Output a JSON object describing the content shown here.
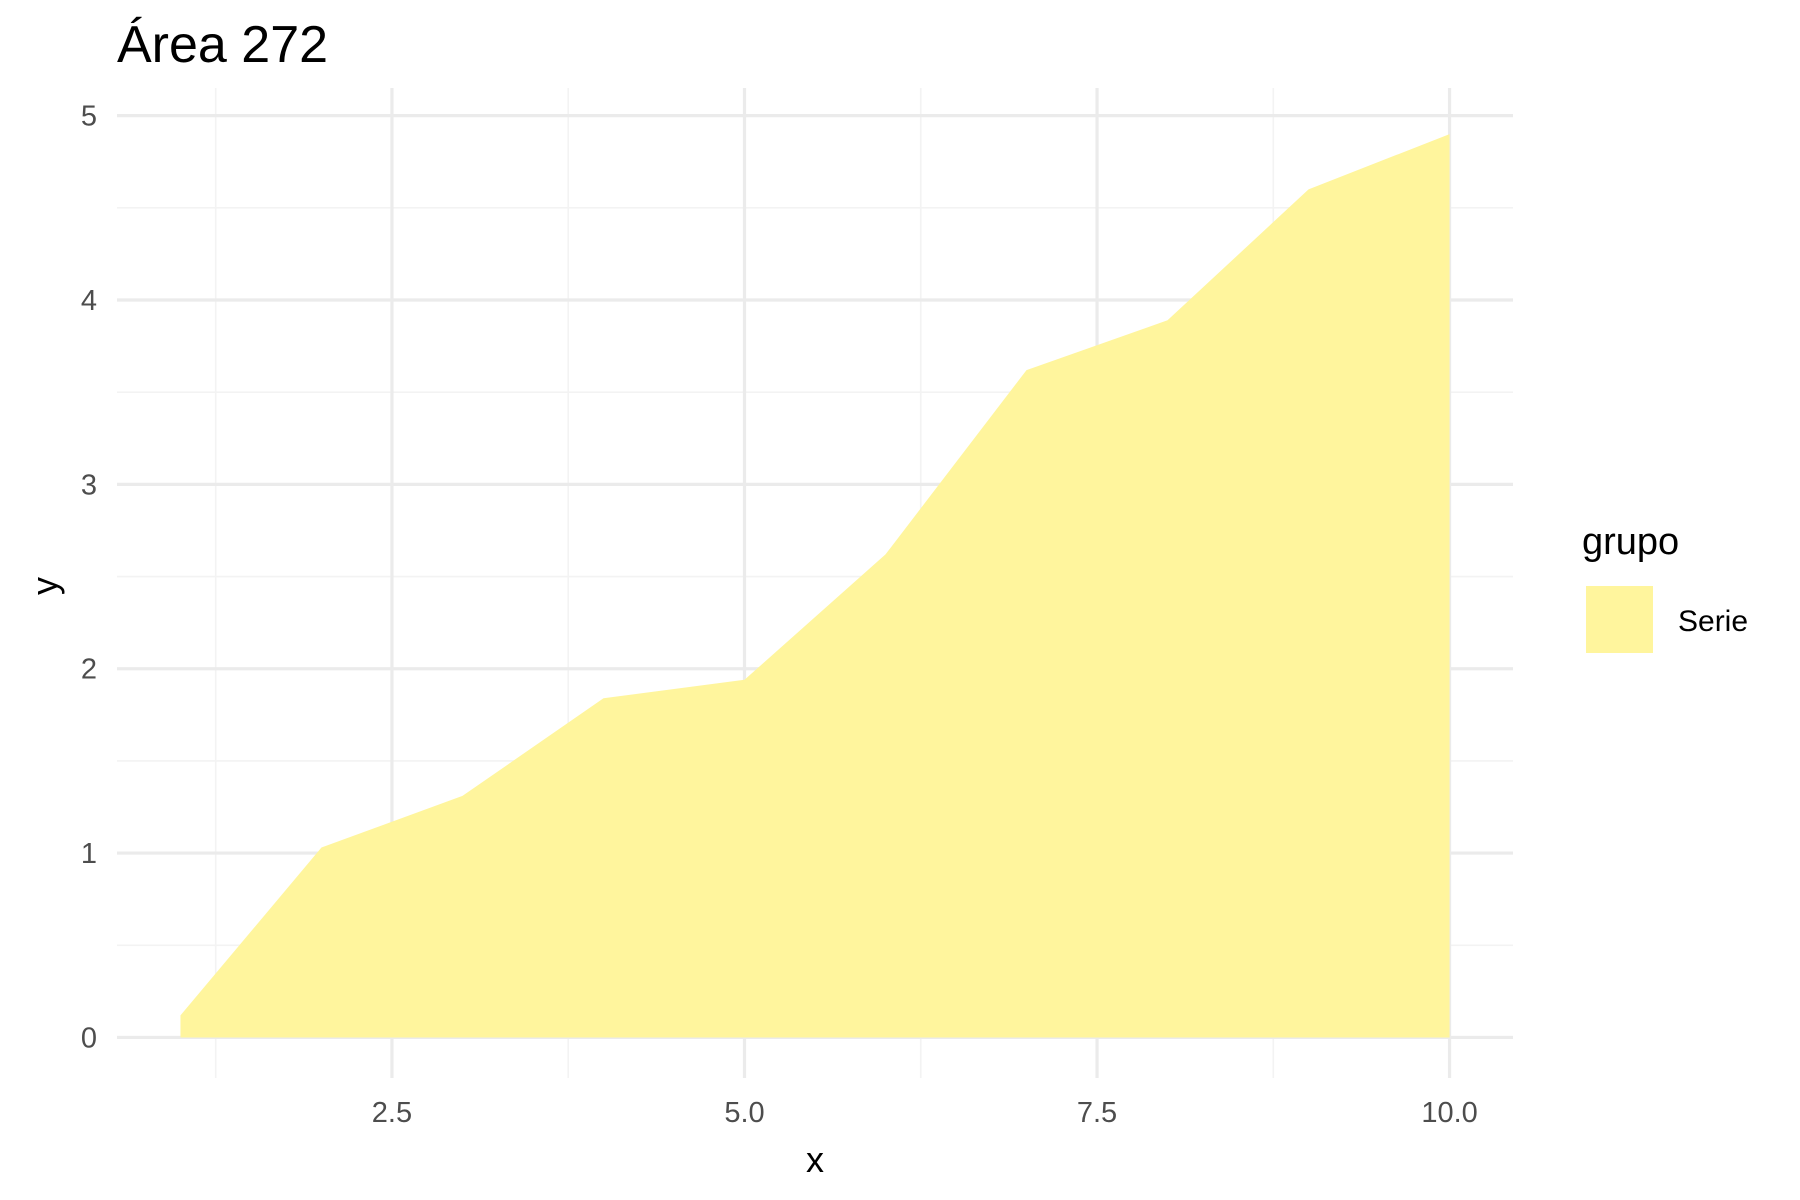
{
  "chart_data": {
    "type": "area",
    "title": "Área 272",
    "xlabel": "x",
    "ylabel": "y",
    "x": [
      1,
      2,
      3,
      4,
      5,
      6,
      7,
      8,
      9,
      10
    ],
    "series": [
      {
        "name": "Serie",
        "values": [
          0.12,
          1.03,
          1.31,
          1.84,
          1.94,
          2.62,
          3.62,
          3.89,
          4.6,
          4.9
        ],
        "color": "#fff59d"
      }
    ],
    "xlim": [
      0.55,
      10.45
    ],
    "ylim": [
      -0.22,
      5.15
    ],
    "x_ticks": [
      2.5,
      5.0,
      7.5,
      10.0
    ],
    "x_tick_labels": [
      "2.5",
      "5.0",
      "7.5",
      "10.0"
    ],
    "y_ticks": [
      0,
      1,
      2,
      3,
      4,
      5
    ],
    "y_tick_labels": [
      "0",
      "1",
      "2",
      "3",
      "4",
      "5"
    ],
    "grid": true,
    "legend": {
      "title": "grupo",
      "position": "right"
    },
    "colors": {
      "grid_major": "#ebebeb",
      "grid_minor": "#f3f3f3",
      "tick_text": "#4d4d4d"
    }
  }
}
